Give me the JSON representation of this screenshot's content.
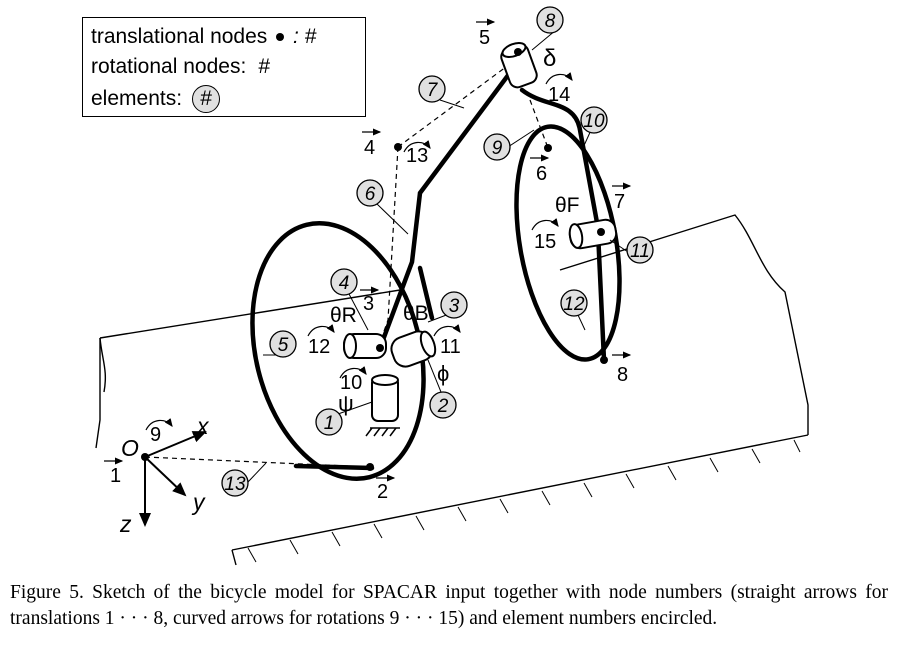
{
  "legend": {
    "translational": "translational nodes",
    "translational_sym": ": #",
    "rotational": "rotational nodes:",
    "rotational_sym": "#",
    "elements": "elements:",
    "elements_sym": "#"
  },
  "origin": {
    "label": "O",
    "x": "x",
    "y": "y",
    "z": "z"
  },
  "translational_nodes": [
    "1",
    "2",
    "3",
    "4",
    "5",
    "6",
    "7",
    "8"
  ],
  "rotational_nodes": [
    "9",
    "10",
    "11",
    "12",
    "13",
    "14",
    "15"
  ],
  "elements": [
    "1",
    "2",
    "3",
    "4",
    "5",
    "6",
    "7",
    "8",
    "9",
    "10",
    "11",
    "12",
    "13"
  ],
  "angles": {
    "psi": "ψ",
    "phi": "ϕ",
    "delta": "δ",
    "theta_R": "θR",
    "theta_B": "θB",
    "theta_F": "θF"
  },
  "caption": "Figure 5. Sketch of the bicycle model for SPACAR input together with node numbers (straight arrows for translations 1 · · · 8, curved arrows for rotations 9 · · · 15) and element numbers encircled."
}
